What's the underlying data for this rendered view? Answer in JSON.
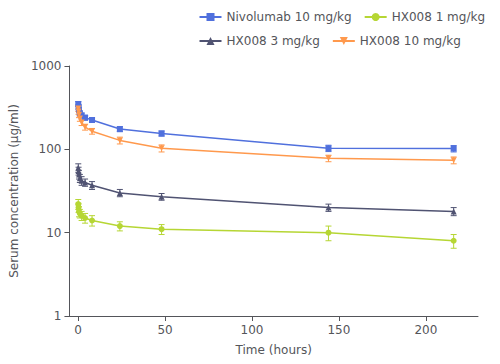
{
  "chart_data": {
    "type": "line",
    "xlabel": "Time (hours)",
    "ylabel": "Serum concentration (μg/ml)",
    "log": "y",
    "grid": false,
    "legend": "upper right",
    "xlim": [
      -5,
      230
    ],
    "ylim": [
      1,
      1000
    ],
    "xticks": [
      0,
      50,
      100,
      150,
      200
    ],
    "yticks": [
      1,
      10,
      100,
      1000
    ],
    "x": [
      0.083,
      0.25,
      0.5,
      1,
      2,
      4,
      8,
      24,
      48,
      144,
      216
    ],
    "series": [
      {
        "name": "Nivolumab 10 mg/kg",
        "marker": "square",
        "line_style": "solid",
        "values": [
          350,
          320,
          295,
          270,
          255,
          240,
          225,
          175,
          155,
          103,
          102
        ],
        "yerr": [
          25,
          22,
          20,
          18,
          17,
          16,
          15,
          12,
          11,
          9,
          9
        ]
      },
      {
        "name": "HX008 1 mg/kg",
        "marker": "circle",
        "line_style": "solid",
        "values": [
          22,
          20,
          18,
          17,
          16,
          15,
          14,
          12,
          11,
          10,
          8
        ],
        "yerr": [
          3,
          2.5,
          2.5,
          2,
          2,
          2,
          2,
          1.5,
          1.5,
          2,
          1.5
        ]
      },
      {
        "name": "HX008 3 mg/kg",
        "marker": "triangle-up",
        "line_style": "solid",
        "values": [
          60,
          55,
          50,
          45,
          42,
          40,
          37,
          30,
          27,
          20,
          18
        ],
        "yerr": [
          7,
          6,
          6,
          5,
          5,
          4,
          4,
          3,
          2.5,
          2,
          2
        ]
      },
      {
        "name": "HX008 10 mg/kg",
        "marker": "triangle-down",
        "line_style": "solid",
        "values": [
          310,
          285,
          260,
          235,
          210,
          185,
          165,
          128,
          103,
          78,
          74
        ],
        "yerr": [
          25,
          22,
          20,
          18,
          17,
          15,
          13,
          12,
          10,
          7,
          7
        ]
      }
    ]
  }
}
